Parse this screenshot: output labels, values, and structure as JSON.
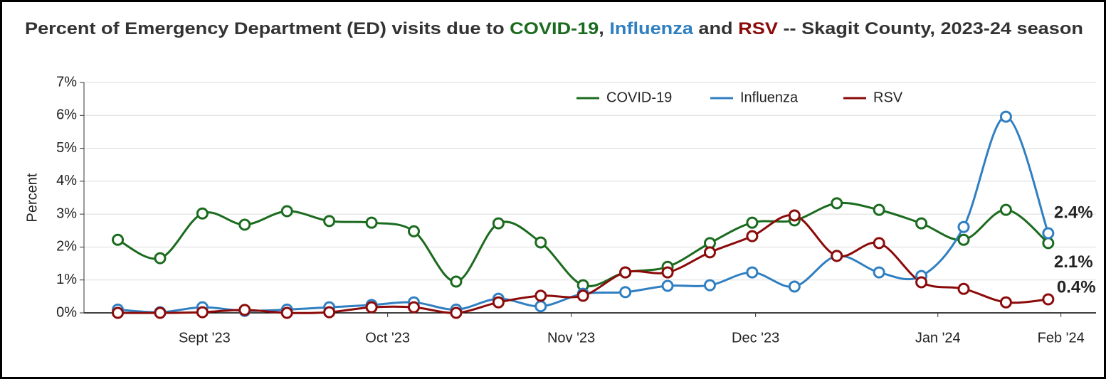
{
  "chart_data": {
    "type": "line",
    "title": [
      "Percent of Emergency Department (ED) visits due to ",
      "COVID-19",
      ", ",
      "Influenza",
      " and ",
      "RSV",
      " -- Skagit County, 2023-24 season"
    ],
    "y_label": "Percent",
    "x": [
      0,
      1,
      2,
      3,
      4,
      5,
      6,
      7,
      8,
      9,
      10,
      11,
      12,
      13,
      14,
      15,
      16,
      17,
      18,
      19,
      20,
      21,
      22
    ],
    "xlim": [
      -0.8,
      23.13
    ],
    "xticks": [
      {
        "value": 2.05,
        "label": "Sept '23"
      },
      {
        "value": 6.38,
        "label": "Oct '23"
      },
      {
        "value": 10.72,
        "label": "Nov '23"
      },
      {
        "value": 15.08,
        "label": "Dec '23"
      },
      {
        "value": 19.39,
        "label": "Jan '24"
      },
      {
        "value": 22.3,
        "label": "Feb '24"
      }
    ],
    "ylim": [
      0,
      7
    ],
    "yticks": [
      {
        "value": 0,
        "label": "0%"
      },
      {
        "value": 1,
        "label": "1%"
      },
      {
        "value": 2,
        "label": "2%"
      },
      {
        "value": 3,
        "label": "3%"
      },
      {
        "value": 4,
        "label": "4%"
      },
      {
        "value": 5,
        "label": "5%"
      },
      {
        "value": 6,
        "label": "6%"
      },
      {
        "value": 7,
        "label": "7%"
      }
    ],
    "grid": true,
    "legend": "top",
    "series": [
      {
        "name": "COVID-19",
        "color": "#1b6b1f",
        "values": [
          2.22,
          1.66,
          3.02,
          2.68,
          3.09,
          2.79,
          2.74,
          2.48,
          0.95,
          2.72,
          2.14,
          0.84,
          1.23,
          1.4,
          2.12,
          2.74,
          2.81,
          3.33,
          3.13,
          2.72,
          2.22,
          3.13,
          2.12
        ],
        "value_labels": [
          null,
          null,
          null,
          null,
          null,
          null,
          null,
          null,
          null,
          null,
          null,
          null,
          null,
          null,
          null,
          null,
          null,
          null,
          null,
          null,
          null,
          null,
          "2.1%"
        ]
      },
      {
        "name": "Influenza",
        "color": "#2f7fc1",
        "values": [
          0.1,
          0.02,
          0.17,
          0.06,
          0.1,
          0.17,
          0.24,
          0.32,
          0.1,
          0.43,
          0.2,
          0.58,
          0.63,
          0.82,
          0.84,
          1.23,
          0.8,
          1.73,
          1.23,
          1.12,
          2.61,
          5.96,
          2.42
        ],
        "value_labels": [
          null,
          null,
          null,
          null,
          null,
          null,
          null,
          null,
          null,
          null,
          null,
          null,
          null,
          null,
          null,
          null,
          null,
          null,
          null,
          null,
          null,
          null,
          "2.4%"
        ]
      },
      {
        "name": "RSV",
        "color": "#8b0a0a",
        "values": [
          0,
          0,
          0.02,
          0.09,
          0,
          0.02,
          0.17,
          0.17,
          0,
          0.32,
          0.52,
          0.52,
          1.23,
          1.23,
          1.84,
          2.33,
          2.96,
          1.73,
          2.12,
          0.93,
          0.73,
          0.32,
          0.41
        ],
        "value_labels": [
          null,
          null,
          null,
          null,
          null,
          null,
          null,
          null,
          null,
          null,
          null,
          null,
          null,
          null,
          null,
          null,
          null,
          null,
          null,
          null,
          null,
          null,
          "0.4%"
        ]
      }
    ]
  }
}
